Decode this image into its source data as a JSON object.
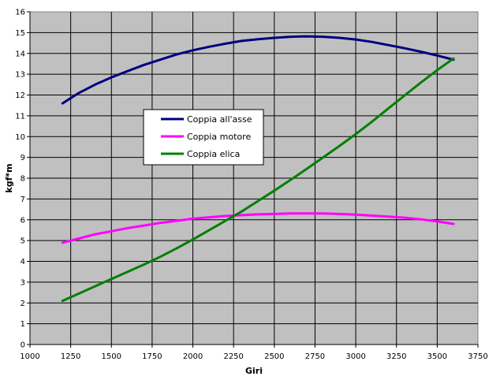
{
  "chart_data": {
    "type": "line",
    "title": "",
    "xlabel": "Giri",
    "ylabel": "kgf*m",
    "xlim": [
      1000,
      3750
    ],
    "ylim": [
      0,
      16
    ],
    "x_ticks": [
      "1000",
      "1250",
      "1500",
      "1750",
      "2000",
      "2250",
      "2500",
      "2750",
      "3000",
      "3250",
      "3500",
      "3750"
    ],
    "y_ticks": [
      "0",
      "1",
      "2",
      "3",
      "4",
      "5",
      "6",
      "7",
      "8",
      "9",
      "10",
      "11",
      "12",
      "13",
      "14",
      "15",
      "16"
    ],
    "grid": true,
    "plot_background": "#c0c0c0",
    "legend_position": "center-left",
    "series": [
      {
        "name": "Coppia all'asse",
        "color": "#000080",
        "points": [
          [
            1200,
            11.6
          ],
          [
            1300,
            12.1
          ],
          [
            1400,
            12.5
          ],
          [
            1500,
            12.85
          ],
          [
            1600,
            13.15
          ],
          [
            1700,
            13.45
          ],
          [
            1800,
            13.7
          ],
          [
            1900,
            13.95
          ],
          [
            2000,
            14.15
          ],
          [
            2100,
            14.32
          ],
          [
            2200,
            14.47
          ],
          [
            2300,
            14.6
          ],
          [
            2400,
            14.68
          ],
          [
            2500,
            14.75
          ],
          [
            2600,
            14.8
          ],
          [
            2700,
            14.82
          ],
          [
            2800,
            14.8
          ],
          [
            2900,
            14.75
          ],
          [
            3000,
            14.67
          ],
          [
            3100,
            14.55
          ],
          [
            3200,
            14.4
          ],
          [
            3300,
            14.25
          ],
          [
            3400,
            14.08
          ],
          [
            3500,
            13.9
          ],
          [
            3600,
            13.7
          ]
        ]
      },
      {
        "name": "Coppia motore",
        "color": "#ff00ff",
        "points": [
          [
            1200,
            4.9
          ],
          [
            1300,
            5.1
          ],
          [
            1400,
            5.3
          ],
          [
            1500,
            5.45
          ],
          [
            1600,
            5.6
          ],
          [
            1700,
            5.72
          ],
          [
            1800,
            5.85
          ],
          [
            1900,
            5.95
          ],
          [
            2000,
            6.05
          ],
          [
            2100,
            6.12
          ],
          [
            2200,
            6.18
          ],
          [
            2300,
            6.22
          ],
          [
            2400,
            6.26
          ],
          [
            2500,
            6.28
          ],
          [
            2600,
            6.3
          ],
          [
            2700,
            6.3
          ],
          [
            2800,
            6.3
          ],
          [
            2900,
            6.28
          ],
          [
            3000,
            6.25
          ],
          [
            3100,
            6.2
          ],
          [
            3200,
            6.15
          ],
          [
            3300,
            6.1
          ],
          [
            3400,
            6.02
          ],
          [
            3500,
            5.92
          ],
          [
            3600,
            5.8
          ]
        ]
      },
      {
        "name": "Coppia elica",
        "color": "#008000",
        "points": [
          [
            1200,
            2.1
          ],
          [
            1300,
            2.45
          ],
          [
            1400,
            2.8
          ],
          [
            1500,
            3.15
          ],
          [
            1600,
            3.5
          ],
          [
            1700,
            3.85
          ],
          [
            1800,
            4.22
          ],
          [
            1900,
            4.62
          ],
          [
            2000,
            5.05
          ],
          [
            2100,
            5.5
          ],
          [
            2200,
            5.95
          ],
          [
            2300,
            6.4
          ],
          [
            2400,
            6.9
          ],
          [
            2500,
            7.4
          ],
          [
            2600,
            7.92
          ],
          [
            2700,
            8.45
          ],
          [
            2800,
            9.0
          ],
          [
            2900,
            9.55
          ],
          [
            3000,
            10.12
          ],
          [
            3100,
            10.72
          ],
          [
            3200,
            11.35
          ],
          [
            3300,
            11.98
          ],
          [
            3400,
            12.6
          ],
          [
            3500,
            13.2
          ],
          [
            3600,
            13.75
          ]
        ]
      }
    ]
  }
}
